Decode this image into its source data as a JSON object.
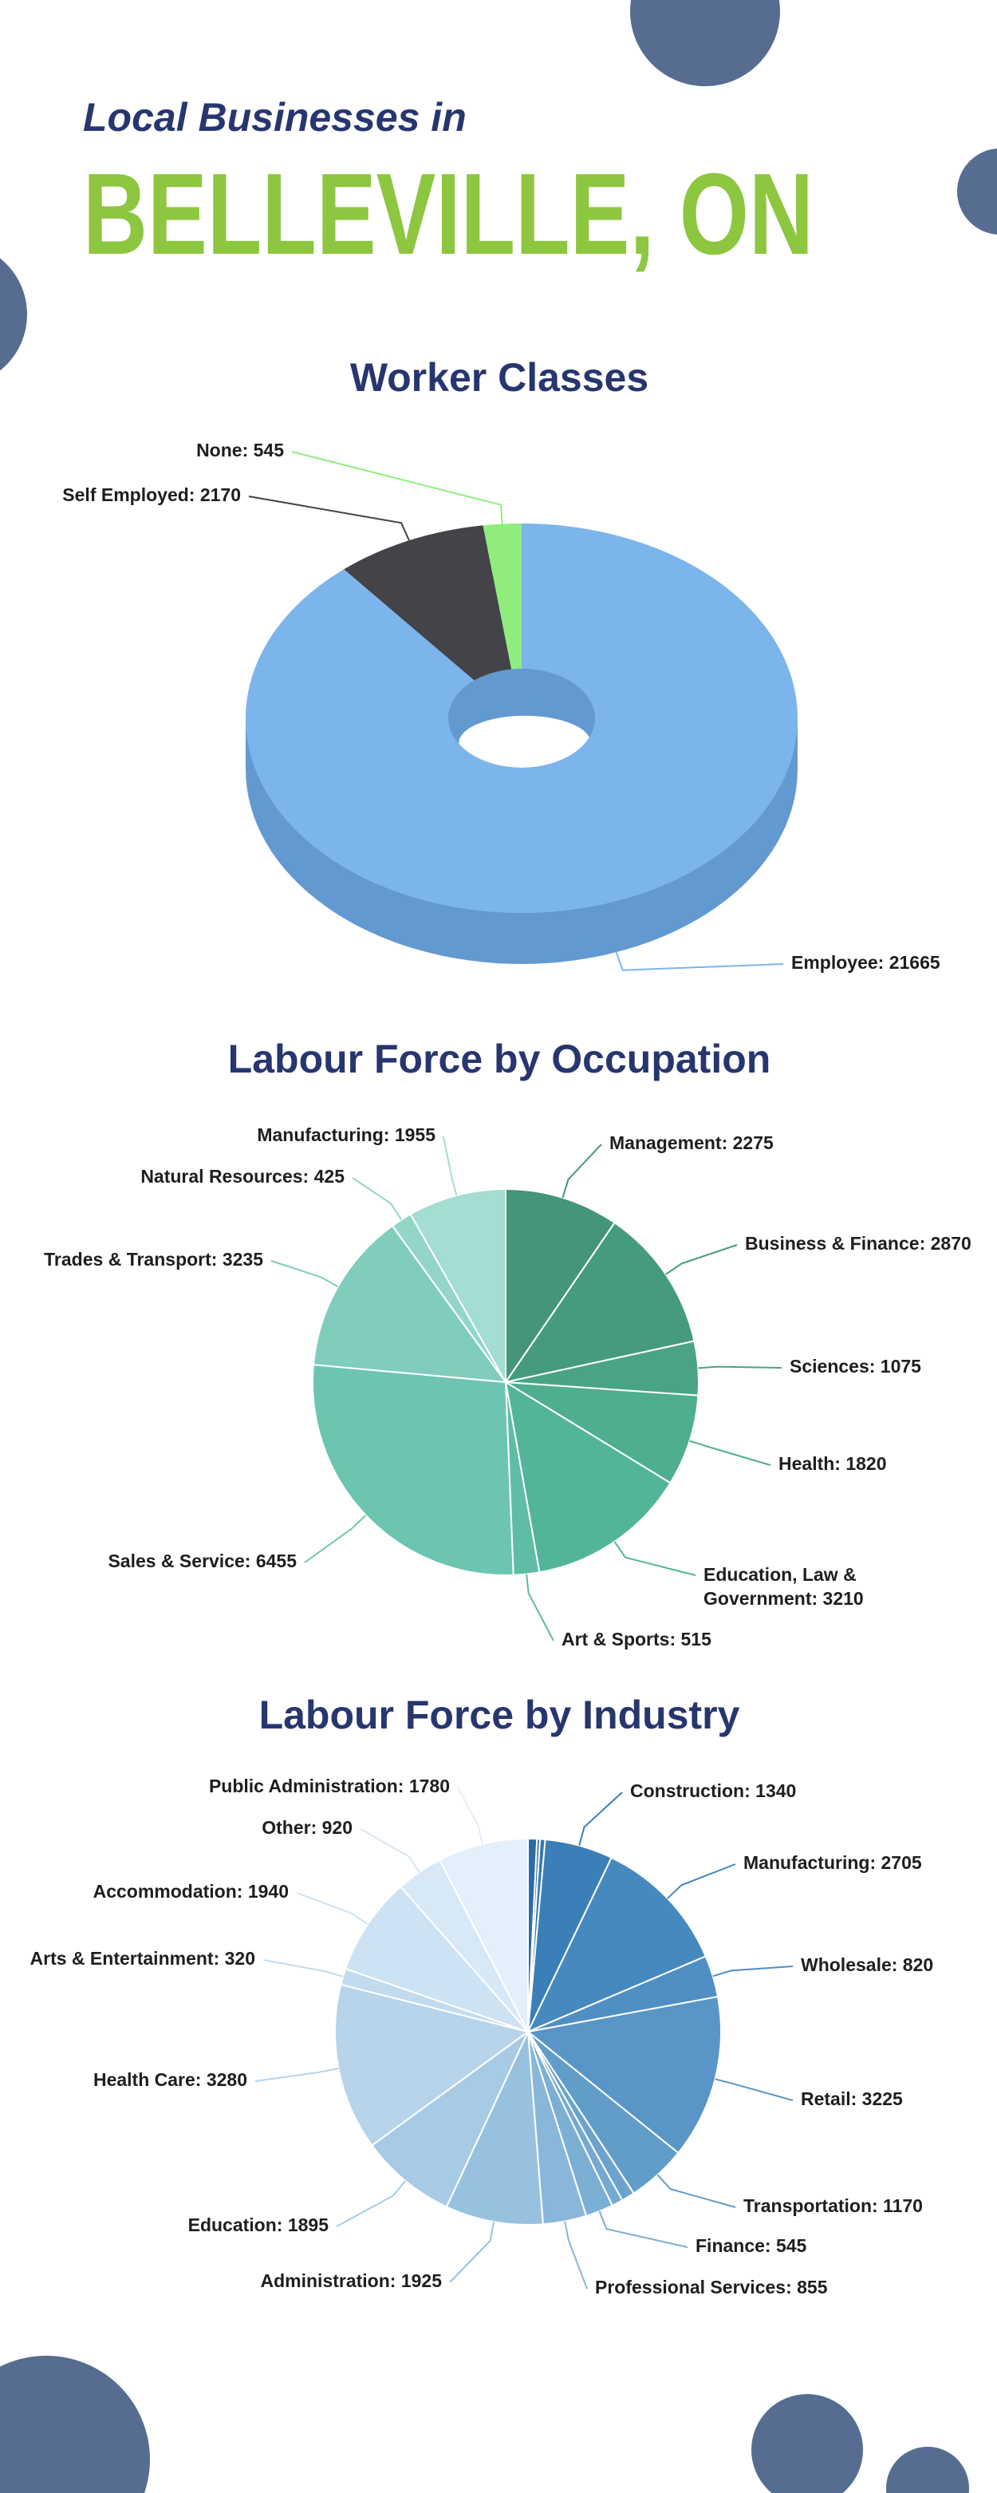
{
  "header": {
    "subtitle": "Local Businesses in",
    "title": "BELLEVILLE, ON"
  },
  "chart_data": [
    {
      "type": "donut3d",
      "title": "Worker Classes",
      "values": [
        21665,
        2170,
        545
      ],
      "value_labels": [
        "Employee: 21665",
        "Self Employed: 2170",
        "None: 545"
      ],
      "colors": [
        "#7cb5ec",
        "#434348",
        "#90ed7d"
      ]
    },
    {
      "type": "pie",
      "title": "Labour Force by Occupation",
      "values": [
        2275,
        2870,
        1075,
        1820,
        3210,
        515,
        6455,
        3235,
        425,
        1955
      ],
      "value_labels": [
        "Management: 2275",
        "Business & Finance: 2870",
        "Sciences: 1075",
        "Health: 1820",
        "Education, Law & Government: 3210",
        "Art & Sports: 515",
        "Sales & Service: 6455",
        "Trades & Transport: 3235",
        "Natural Resources: 425",
        "Manufacturing: 1955"
      ],
      "colors": [
        "#449579",
        "#469b7d",
        "#4aa483",
        "#4eae8f",
        "#52b59a",
        "#5fbca5",
        "#6dc5b1",
        "#80cdbd",
        "#93d6c8",
        "#a4ddd1"
      ]
    },
    {
      "type": "pie",
      "title": "Labour Force by Industry",
      "values": [
        175,
        60,
        100,
        1340,
        2705,
        820,
        3225,
        1170,
        260,
        220,
        545,
        855,
        1925,
        1895,
        3280,
        320,
        1940,
        920,
        1780
      ],
      "value_labels": [
        null,
        null,
        null,
        "Construction: 1340",
        "Manufacturing: 2705",
        "Wholesale: 820",
        "Retail: 3225",
        "Transportation: 1170",
        null,
        null,
        "Finance: 545",
        "Professional Services: 855",
        "Administration: 1925",
        "Education: 1895",
        "Health Care: 3280",
        "Arts & Entertainment: 320",
        "Accommodation: 1940",
        "Other: 920",
        "Public Administration: 1780"
      ],
      "colors": [
        "#2b6ca8",
        "#2f72ad",
        "#3377b2",
        "#3a7fb8",
        "#4589bf",
        "#508fc3",
        "#5996c7",
        "#629dca",
        "#6ba3cd",
        "#74a9d1",
        "#7cafd4",
        "#88b7d9",
        "#98c1df",
        "#a7cbe4",
        "#b7d4ea",
        "#c2dbee",
        "#cde2f2",
        "#d7e8f6",
        "#e3effb"
      ]
    }
  ]
}
